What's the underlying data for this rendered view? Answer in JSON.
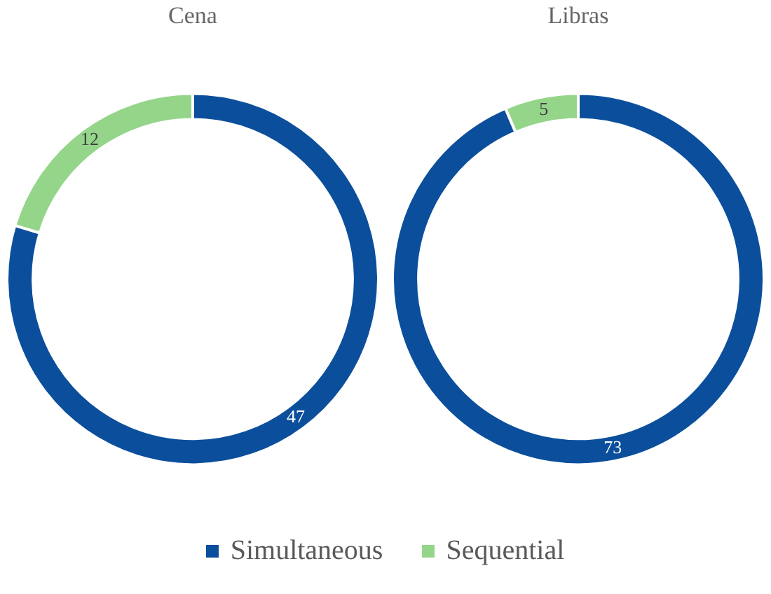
{
  "chart_data": [
    {
      "type": "donut",
      "title": "Cena",
      "categories": [
        "Simultaneous",
        "Sequential"
      ],
      "values": [
        47,
        12
      ],
      "colors": [
        "#0b4f9c",
        "#95d58a"
      ],
      "data_labels": true,
      "legend": "bottom"
    },
    {
      "type": "donut",
      "title": "Libras",
      "categories": [
        null,
        null
      ],
      "values": [
        73,
        5
      ],
      "colors": [
        "#0b4f9c",
        "#95d58a"
      ],
      "data_labels": true
    }
  ]
}
